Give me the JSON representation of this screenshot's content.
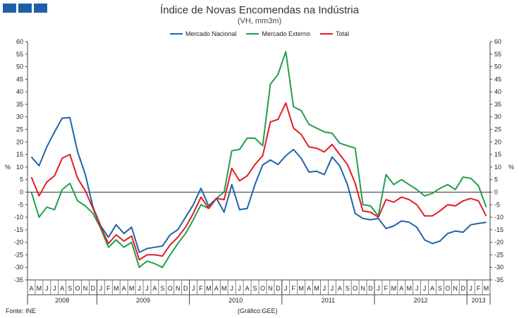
{
  "header": {
    "logo_name": "report-logo-blocks"
  },
  "chart_data": {
    "type": "line",
    "title": "Índice de Novas Encomendas na Indústria",
    "subtitle": "(VH, mm3m)",
    "ylabel_left": "%",
    "ylabel_right": "%",
    "ylim": [
      -35,
      60
    ],
    "ytick_step": 5,
    "grid": false,
    "legend_position": "top-center",
    "categories": [
      "A",
      "M",
      "J",
      "J",
      "A",
      "S",
      "O",
      "N",
      "D",
      "J",
      "F",
      "M",
      "A",
      "M",
      "J",
      "J",
      "A",
      "S",
      "O",
      "N",
      "D",
      "J",
      "F",
      "M",
      "A",
      "M",
      "J",
      "J",
      "A",
      "S",
      "O",
      "N",
      "D",
      "J",
      "F",
      "M",
      "A",
      "M",
      "J",
      "J",
      "A",
      "S",
      "O",
      "N",
      "D",
      "J",
      "F",
      "M",
      "A",
      "M",
      "J",
      "J",
      "A",
      "S",
      "O",
      "N",
      "D",
      "J",
      "F",
      "M"
    ],
    "years": [
      {
        "label": "2008",
        "start": 0,
        "end": 8
      },
      {
        "label": "2009",
        "start": 9,
        "end": 20
      },
      {
        "label": "2010",
        "start": 21,
        "end": 32
      },
      {
        "label": "2011",
        "start": 33,
        "end": 44
      },
      {
        "label": "2012",
        "start": 45,
        "end": 56
      },
      {
        "label": "2013",
        "start": 57,
        "end": 59
      }
    ],
    "series": [
      {
        "name": "Mercado Nacional",
        "color": "#1f64a8",
        "values": [
          14,
          10.5,
          18,
          24,
          29.5,
          29.7,
          16,
          7,
          -6,
          -13.5,
          -18,
          -13,
          -16.5,
          -14,
          -24,
          -22.5,
          -22,
          -21.5,
          -17,
          -15,
          -10,
          -5,
          1.5,
          -5.5,
          -2.5,
          -8,
          3,
          -7,
          -6.5,
          3,
          10.8,
          12.8,
          11,
          14.5,
          17,
          13.5,
          8,
          8.3,
          7,
          14,
          10.5,
          3,
          -8.5,
          -10.5,
          -11,
          -10.5,
          -14.5,
          -13.5,
          -11.5,
          -12,
          -14,
          -19,
          -20.5,
          -19.5,
          -16.5,
          -15.5,
          -16,
          -13,
          -12.5,
          -12
        ]
      },
      {
        "name": "Mercado Externo",
        "color": "#1fa04a",
        "values": [
          0,
          -10,
          -6,
          -7,
          1,
          3.5,
          -3.5,
          -5.5,
          -8.5,
          -14.5,
          -22,
          -19,
          -22,
          -20,
          -30,
          -27.5,
          -28.5,
          -30,
          -25,
          -20.5,
          -16.5,
          -11,
          -5,
          -6.5,
          -2.5,
          0,
          16.5,
          17,
          21.5,
          21.5,
          18.5,
          43,
          47,
          56,
          34,
          32.5,
          27,
          25.5,
          24,
          23.5,
          19.5,
          18.5,
          17.5,
          -5,
          -5.5,
          -9.5,
          7,
          3,
          5,
          3,
          1,
          -1.5,
          -0.5,
          1.5,
          3,
          1,
          6,
          5.5,
          2.5,
          -6
        ]
      },
      {
        "name": "Total",
        "color": "#e11d21",
        "values": [
          6,
          -1.5,
          4,
          6.5,
          13.5,
          15,
          5.5,
          0.5,
          -6.5,
          -14,
          -20.5,
          -17,
          -19.5,
          -17.5,
          -27,
          -25,
          -25,
          -25.5,
          -21,
          -18,
          -14,
          -8.5,
          -2,
          -6.5,
          -2.5,
          -3,
          9.5,
          4.5,
          6.5,
          11,
          14.5,
          28,
          29,
          35.5,
          25.5,
          23,
          18,
          17.5,
          16,
          19,
          15,
          11,
          3.5,
          -7.5,
          -8,
          -10,
          -3,
          -4,
          -2,
          -3,
          -5,
          -9.5,
          -9.5,
          -7.5,
          -5,
          -5.5,
          -3.5,
          -2.5,
          -3.5,
          -9.5
        ]
      }
    ]
  },
  "footer": {
    "source": "Fonte: INE",
    "credit": "(Gráfico:GEE)"
  }
}
